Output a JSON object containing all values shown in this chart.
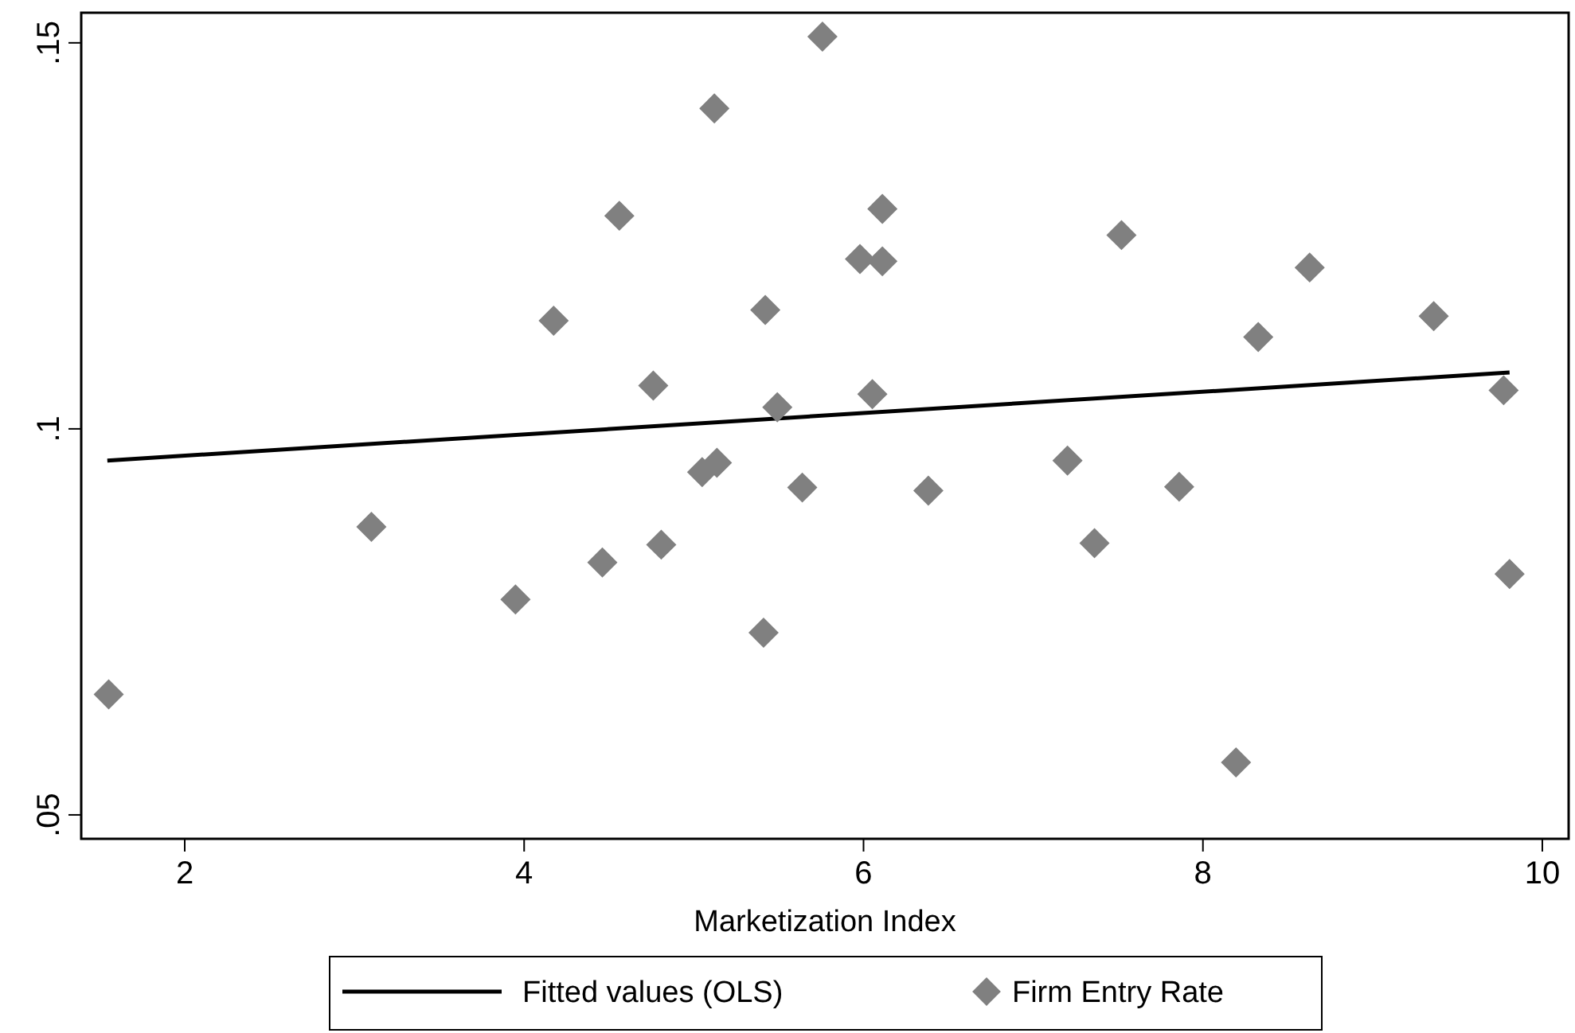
{
  "chart_data": {
    "type": "scatter",
    "xlabel": "Marketization Index",
    "xlim": [
      1.39,
      10.155
    ],
    "ylim": [
      0.0469,
      0.1539
    ],
    "xticks": [
      2,
      4,
      6,
      8,
      10
    ],
    "yticks": [
      {
        "value": 0.05,
        "label": ".05"
      },
      {
        "value": 0.1,
        "label": ".1"
      },
      {
        "value": 0.15,
        "label": ".15"
      }
    ],
    "grid": false,
    "legend": "bottom",
    "series": [
      {
        "name": "Fitted values (OLS)",
        "type": "line",
        "color": "#000000",
        "marker": "none",
        "line_style": "solid",
        "x": [
          1.544,
          9.807
        ],
        "values": [
          0.0959,
          0.1073
        ]
      },
      {
        "name": "Firm Entry Rate",
        "color": "#808080",
        "marker": "diamond",
        "x": [
          1.552,
          3.1,
          3.949,
          4.174,
          4.461,
          4.561,
          4.761,
          4.808,
          5.049,
          5.136,
          5.121,
          5.421,
          5.411,
          5.492,
          5.639,
          5.758,
          5.979,
          6.052,
          6.111,
          6.111,
          6.382,
          7.202,
          7.361,
          7.52,
          7.86,
          8.195,
          8.326,
          8.629,
          9.36,
          9.772,
          9.807
        ],
        "values": [
          0.0656,
          0.0873,
          0.0779,
          0.114,
          0.0827,
          0.1276,
          0.1056,
          0.085,
          0.0944,
          0.0956,
          0.1415,
          0.1154,
          0.0736,
          0.1028,
          0.0924,
          0.1508,
          0.122,
          0.1045,
          0.1285,
          0.1217,
          0.092,
          0.0959,
          0.0852,
          0.1251,
          0.0925,
          0.0568,
          0.1119,
          0.1209,
          0.1146,
          0.105,
          0.0812
        ]
      }
    ]
  }
}
